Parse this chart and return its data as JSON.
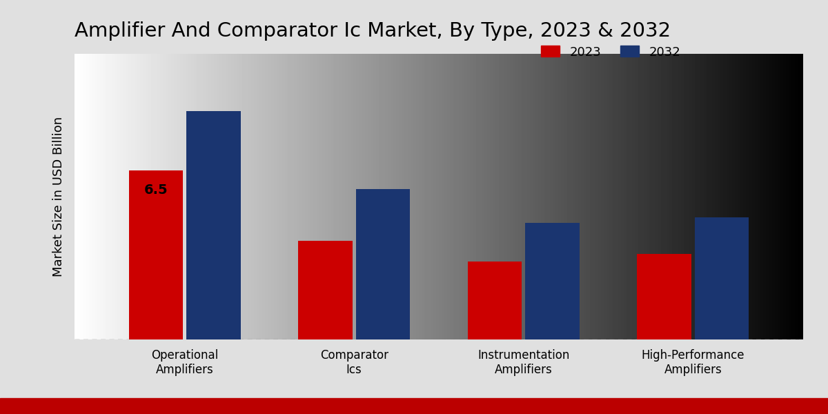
{
  "title": "Amplifier And Comparator Ic Market, By Type, 2023 & 2032",
  "ylabel": "Market Size in USD Billion",
  "categories": [
    "Operational\nAmplifiers",
    "Comparator\nIcs",
    "Instrumentation\nAmplifiers",
    "High-Performance\nAmplifiers"
  ],
  "values_2023": [
    6.5,
    3.8,
    3.0,
    3.3
  ],
  "values_2032": [
    8.8,
    5.8,
    4.5,
    4.7
  ],
  "color_2023": "#cc0000",
  "color_2032": "#1a3570",
  "annotation_text": "6.5",
  "background_top": "#e8e8e8",
  "background_bottom": "#f5f5f5",
  "bar_width": 0.32,
  "legend_labels": [
    "2023",
    "2032"
  ],
  "title_fontsize": 21,
  "label_fontsize": 13,
  "tick_fontsize": 12,
  "legend_fontsize": 13,
  "ylim": [
    0,
    11
  ],
  "red_stripe_color": "#bb0000"
}
